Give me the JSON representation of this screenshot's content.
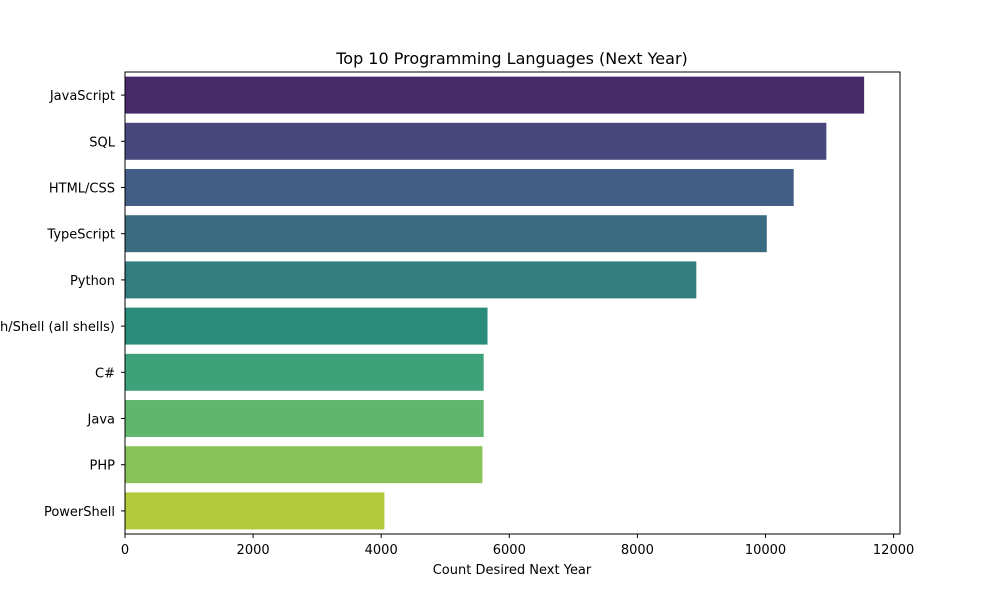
{
  "chart_data": {
    "type": "bar",
    "orientation": "horizontal",
    "title": "Top 10 Programming Languages (Next Year)",
    "xlabel": "Count Desired Next Year",
    "ylabel": "",
    "xlim": [
      0,
      12100
    ],
    "xticks": [
      0,
      2000,
      4000,
      6000,
      8000,
      10000,
      12000
    ],
    "grid": false,
    "categories": [
      "JavaScript",
      "SQL",
      "HTML/CSS",
      "TypeScript",
      "Python",
      "Bash/Shell (all shells)",
      "C#",
      "Java",
      "PHP",
      "PowerShell"
    ],
    "values": [
      11540,
      10950,
      10440,
      10020,
      8920,
      5660,
      5600,
      5600,
      5580,
      4050
    ],
    "colors": [
      "#482a6b",
      "#48487f",
      "#425d85",
      "#3a6b80",
      "#317d80",
      "#2a8b7a",
      "#3ea17a",
      "#61b66e",
      "#8ac25a",
      "#b2c93a"
    ]
  }
}
